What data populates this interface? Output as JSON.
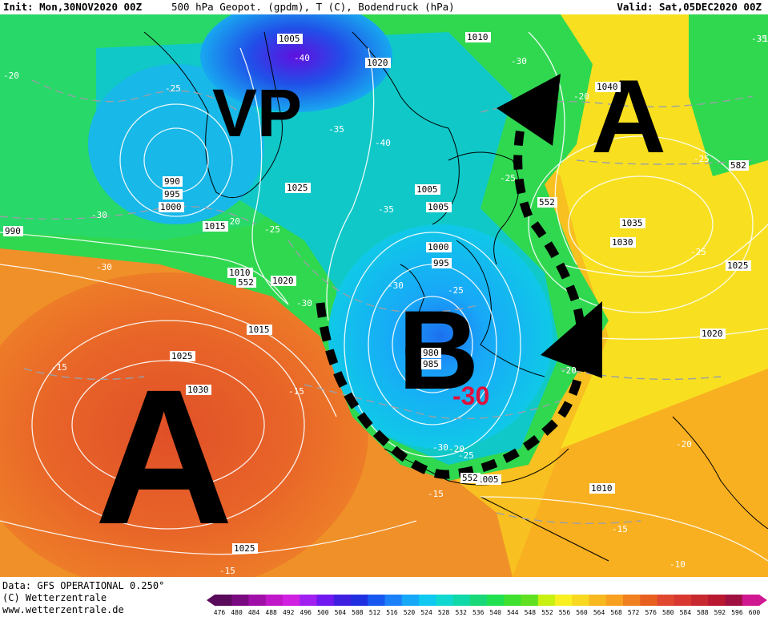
{
  "header": {
    "init": "Init: Mon,30NOV2020 00Z",
    "title": "500 hPa Geopot. (gpdm), T (C), Bodendruck (hPa)",
    "valid": "Valid: Sat,05DEC2020 00Z"
  },
  "footer": {
    "source": "Data: GFS OPERATIONAL 0.250°",
    "copyright": "(C) Wetterzentrale",
    "url": "www.wetterzentrale.de"
  },
  "annotations": {
    "vp": "VP",
    "high_east": "A",
    "high_west": "A",
    "low": "B",
    "low_temp": "-30"
  },
  "isobar_labels": [
    "1005",
    "1010",
    "1020",
    "1040",
    "990",
    "995",
    "1000",
    "1025",
    "1005",
    "1015",
    "1005",
    "1000",
    "995",
    "990",
    "1010",
    "1020",
    "1015",
    "1025",
    "1030",
    "1025",
    "1035",
    "1030",
    "1025",
    "1020",
    "980",
    "985",
    "1005",
    "1010",
    "552",
    "552",
    "582",
    "552"
  ],
  "temp_labels": [
    "-35",
    "-40",
    "-30",
    "-20",
    "-25",
    "-35",
    "-40",
    "-35",
    "-25",
    "-25",
    "-30",
    "-20",
    "-25",
    "-30",
    "-25",
    "-30",
    "-30",
    "-20",
    "-15",
    "-15",
    "-20",
    "-15",
    "-20",
    "-30",
    "-25",
    "-15",
    "-15",
    "-10",
    "-20",
    "-25",
    "-15"
  ],
  "colorscale": {
    "ticks": [
      "476",
      "480",
      "484",
      "488",
      "492",
      "496",
      "500",
      "504",
      "508",
      "512",
      "516",
      "520",
      "524",
      "528",
      "532",
      "536",
      "540",
      "544",
      "548",
      "552",
      "556",
      "560",
      "564",
      "568",
      "572",
      "576",
      "580",
      "584",
      "588",
      "592",
      "596",
      "600"
    ],
    "colors": [
      "#5a0a5a",
      "#7a0a80",
      "#a010a8",
      "#c018c8",
      "#d020e0",
      "#a020f0",
      "#7018f0",
      "#4020e0",
      "#2030e0",
      "#1858f0",
      "#1c80f8",
      "#18a8f8",
      "#10c8f0",
      "#10d8d0",
      "#10d8a8",
      "#18d878",
      "#20e050",
      "#40e030",
      "#60e020",
      "#c8f010",
      "#f8f020",
      "#f8d820",
      "#f8b820",
      "#f8a020",
      "#f08020",
      "#e86020",
      "#e04830",
      "#d83830",
      "#c82830",
      "#b81830",
      "#a01040",
      "#d01890"
    ]
  }
}
